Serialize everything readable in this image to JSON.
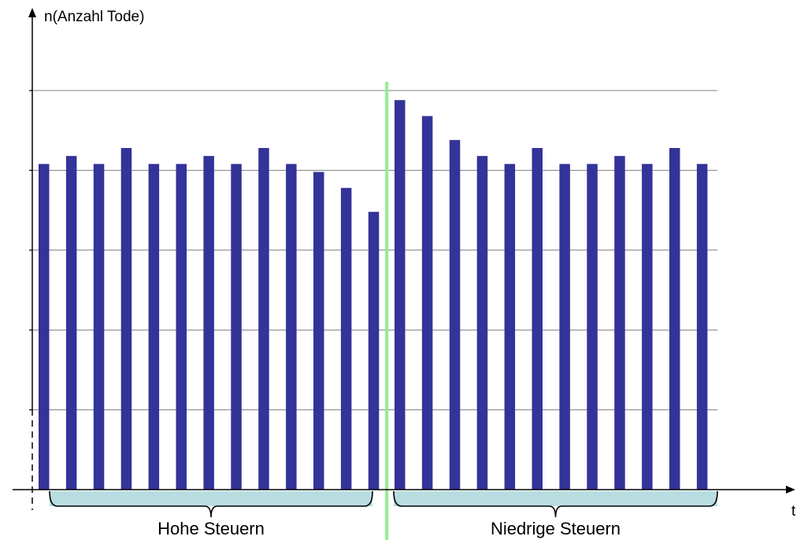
{
  "chart_data": {
    "type": "bar",
    "ylabel": "n(Anzahl Tode)",
    "xlabel": "t",
    "ylim": [
      0,
      5
    ],
    "y_grid": [
      1,
      2,
      3,
      4,
      5
    ],
    "grid": true,
    "values": [
      4.08,
      4.18,
      4.08,
      4.28,
      4.08,
      4.08,
      4.18,
      4.08,
      4.28,
      4.08,
      3.98,
      3.78,
      3.48,
      4.88,
      4.68,
      4.38,
      4.18,
      4.08,
      4.28,
      4.08,
      4.08,
      4.18,
      4.08,
      4.28,
      4.08
    ],
    "divider_after_index": 12,
    "groups": [
      {
        "label": "Hohe Steuern",
        "start": 0,
        "end": 12
      },
      {
        "label": "Niedrige Steuern",
        "start": 13,
        "end": 24
      }
    ],
    "colors": {
      "bar": "#333399",
      "divider": "#90ee90",
      "bracket_fill": "#b8dde0",
      "grid": "#7f7f7f",
      "axis": "#000000"
    }
  }
}
